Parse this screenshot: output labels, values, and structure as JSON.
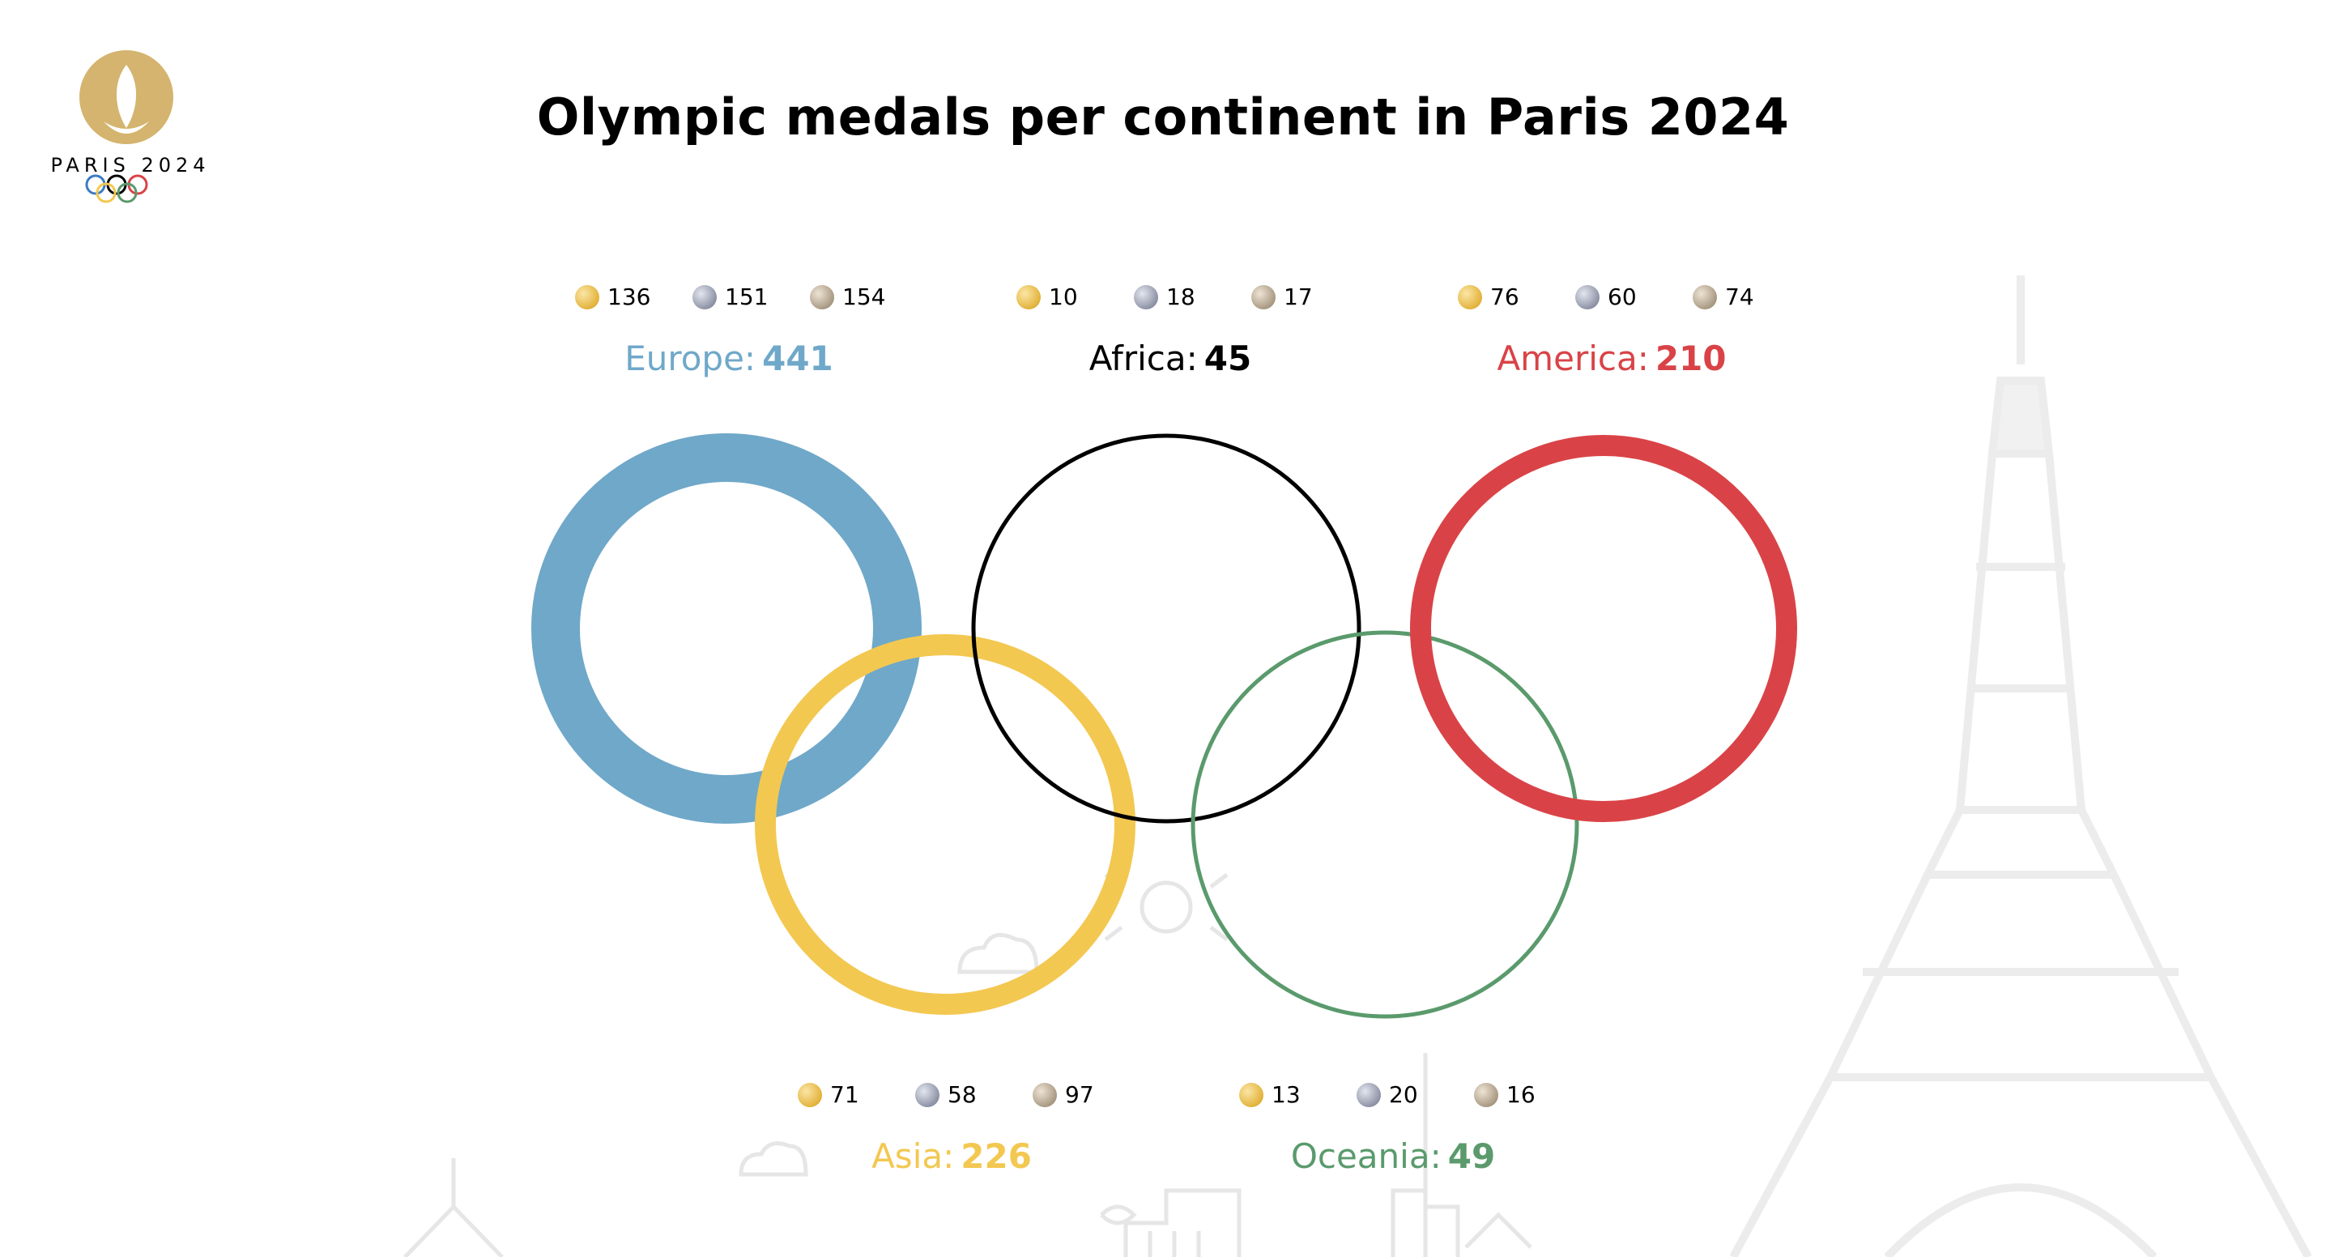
{
  "title": "Olympic medals per continent in Paris 2024",
  "logo": {
    "text": "PARIS 2024"
  },
  "colors": {
    "europe": "#6fa8c9",
    "africa": "#000000",
    "america": "#d94347",
    "asia": "#f3c851",
    "oceania": "#5a9a6c"
  },
  "chart_data": {
    "type": "bubble-rings",
    "title": "Olympic medals per continent in Paris 2024",
    "series": [
      {
        "name": "Europe",
        "total": 441,
        "gold": 136,
        "silver": 151,
        "bronze": 154
      },
      {
        "name": "Africa",
        "total": 45,
        "gold": 10,
        "silver": 18,
        "bronze": 17
      },
      {
        "name": "America",
        "total": 210,
        "gold": 76,
        "silver": 60,
        "bronze": 74
      },
      {
        "name": "Asia",
        "total": 226,
        "gold": 71,
        "silver": 58,
        "bronze": 97
      },
      {
        "name": "Oceania",
        "total": 49,
        "gold": 13,
        "silver": 20,
        "bronze": 16
      }
    ]
  },
  "labels": {
    "europe": {
      "name": "Europe:",
      "total": "441",
      "gold": "136",
      "silver": "151",
      "bronze": "154"
    },
    "africa": {
      "name": "Africa:",
      "total": "45",
      "gold": "10",
      "silver": "18",
      "bronze": "17"
    },
    "america": {
      "name": "America:",
      "total": "210",
      "gold": "76",
      "silver": "60",
      "bronze": "74"
    },
    "asia": {
      "name": "Asia:",
      "total": "226",
      "gold": "71",
      "silver": "58",
      "bronze": "97"
    },
    "oceania": {
      "name": "Oceania:",
      "total": "49",
      "gold": "13",
      "silver": "20",
      "bronze": "16"
    }
  }
}
